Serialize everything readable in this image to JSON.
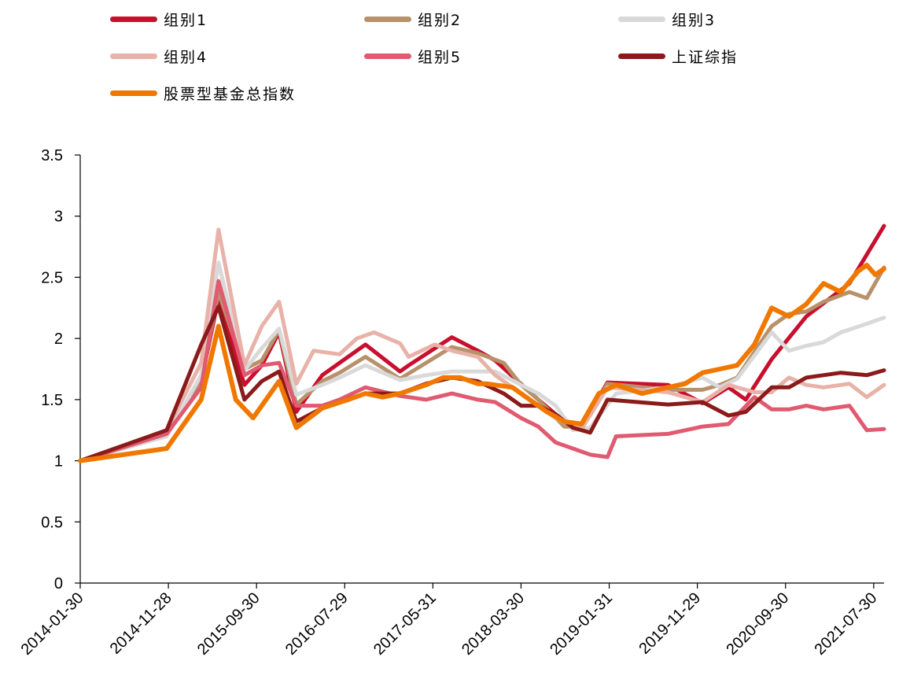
{
  "chart_data": {
    "type": "line",
    "title": "",
    "xlabel": "",
    "ylabel": "",
    "ylim": [
      0,
      3.5
    ],
    "yticks": [
      "0",
      "0.5",
      "1",
      "1.5",
      "2",
      "2.5",
      "3",
      "3.5"
    ],
    "xticks": [
      "2014-01-30",
      "2014-11-28",
      "2015-09-30",
      "2016-07-29",
      "2017-05-31",
      "2018-03-30",
      "2019-01-31",
      "2019-11-29",
      "2020-09-30",
      "2021-07-30"
    ],
    "x_index_range": [
      0,
      93
    ],
    "grid": false,
    "legend_position": "top",
    "series": [
      {
        "name": "组别1",
        "color": "#c8102e",
        "width": 5,
        "x": [
          0,
          10,
          14,
          16,
          19,
          21,
          23,
          25,
          28,
          30,
          33,
          37,
          38,
          43,
          46,
          48,
          53,
          56,
          58,
          61,
          68,
          72,
          75,
          77,
          80,
          84,
          89,
          93
        ],
        "y": [
          1.0,
          1.22,
          1.65,
          2.33,
          1.62,
          1.78,
          2.05,
          1.4,
          1.7,
          1.8,
          1.95,
          1.73,
          1.78,
          2.01,
          1.9,
          1.82,
          1.5,
          1.32,
          1.28,
          1.64,
          1.62,
          1.47,
          1.6,
          1.5,
          1.83,
          2.18,
          2.45,
          2.92
        ]
      },
      {
        "name": "组别2",
        "color": "#b8916a",
        "width": 5,
        "x": [
          0,
          10,
          14,
          16,
          19,
          21,
          23,
          25,
          28,
          30,
          33,
          37,
          40,
          43,
          46,
          49,
          51,
          53,
          56,
          58,
          61,
          68,
          72,
          74,
          76,
          80,
          82,
          84,
          86,
          89,
          91,
          93
        ],
        "y": [
          1.0,
          1.22,
          1.65,
          2.38,
          1.75,
          1.82,
          2.07,
          1.46,
          1.65,
          1.72,
          1.85,
          1.67,
          1.8,
          1.93,
          1.88,
          1.8,
          1.62,
          1.5,
          1.28,
          1.27,
          1.63,
          1.58,
          1.58,
          1.62,
          1.68,
          2.1,
          2.2,
          2.22,
          2.3,
          2.38,
          2.33,
          2.58
        ]
      },
      {
        "name": "组别3",
        "color": "#d9d9d9",
        "width": 5,
        "x": [
          0,
          10,
          14,
          16,
          19,
          21,
          23,
          25,
          28,
          30,
          33,
          37,
          40,
          43,
          46,
          48,
          51,
          53,
          55,
          57,
          59,
          62,
          68,
          72,
          74,
          76,
          80,
          82,
          84,
          86,
          88,
          91,
          93
        ],
        "y": [
          1.0,
          1.2,
          1.7,
          2.62,
          1.74,
          1.92,
          2.08,
          1.54,
          1.62,
          1.68,
          1.78,
          1.66,
          1.7,
          1.73,
          1.73,
          1.73,
          1.62,
          1.55,
          1.45,
          1.25,
          1.27,
          1.55,
          1.6,
          1.68,
          1.6,
          1.67,
          2.05,
          1.9,
          1.94,
          1.97,
          2.05,
          2.12,
          2.17
        ]
      },
      {
        "name": "组别4",
        "color": "#e8b2a8",
        "width": 5,
        "x": [
          0,
          10,
          14,
          16,
          19,
          21,
          23,
          25,
          27,
          30,
          32,
          34,
          37,
          38,
          41,
          43,
          46,
          48,
          51,
          53,
          55,
          57,
          58,
          61,
          68,
          72,
          75,
          78,
          80,
          82,
          84,
          86,
          89,
          91,
          93
        ],
        "y": [
          1.0,
          1.25,
          1.8,
          2.89,
          1.78,
          2.1,
          2.3,
          1.63,
          1.9,
          1.87,
          2.0,
          2.05,
          1.96,
          1.85,
          1.95,
          1.9,
          1.85,
          1.7,
          1.55,
          1.45,
          1.35,
          1.28,
          1.26,
          1.6,
          1.56,
          1.48,
          1.62,
          1.56,
          1.56,
          1.68,
          1.62,
          1.6,
          1.63,
          1.52,
          1.62
        ]
      },
      {
        "name": "组别5",
        "color": "#e05a70",
        "width": 5,
        "x": [
          0,
          10,
          14,
          16,
          19,
          21,
          23,
          25,
          28,
          30,
          33,
          37,
          40,
          43,
          46,
          48,
          51,
          53,
          55,
          57,
          59,
          61,
          62,
          68,
          72,
          75,
          78,
          80,
          82,
          84,
          86,
          89,
          91,
          93
        ],
        "y": [
          1.0,
          1.22,
          1.6,
          2.47,
          1.7,
          1.78,
          1.8,
          1.45,
          1.45,
          1.5,
          1.6,
          1.53,
          1.5,
          1.55,
          1.5,
          1.48,
          1.35,
          1.28,
          1.15,
          1.1,
          1.05,
          1.03,
          1.2,
          1.22,
          1.28,
          1.3,
          1.52,
          1.42,
          1.42,
          1.45,
          1.42,
          1.45,
          1.25,
          1.26
        ]
      },
      {
        "name": "上证综指",
        "color": "#8b1a1a",
        "width": 5,
        "x": [
          0,
          10,
          12,
          14,
          16,
          19,
          21,
          23,
          25,
          28,
          30,
          33,
          37,
          40,
          43,
          46,
          49,
          51,
          53,
          55,
          57,
          59,
          61,
          68,
          72,
          75,
          77,
          80,
          82,
          84,
          86,
          88,
          91,
          93
        ],
        "y": [
          1.0,
          1.25,
          1.6,
          1.95,
          2.26,
          1.5,
          1.65,
          1.73,
          1.32,
          1.43,
          1.48,
          1.55,
          1.55,
          1.63,
          1.68,
          1.65,
          1.55,
          1.45,
          1.45,
          1.38,
          1.27,
          1.23,
          1.5,
          1.46,
          1.48,
          1.37,
          1.4,
          1.6,
          1.6,
          1.68,
          1.7,
          1.72,
          1.7,
          1.74
        ]
      },
      {
        "name": "股票型基金总指数",
        "color": "#f07800",
        "width": 6,
        "x": [
          0,
          10,
          14,
          16,
          18,
          20,
          23,
          25,
          28,
          31,
          33,
          35,
          37,
          40,
          42,
          44,
          46,
          47,
          50,
          52,
          54,
          56,
          58,
          60,
          62,
          65,
          68,
          70,
          72,
          74,
          76,
          78,
          80,
          82,
          84,
          86,
          88,
          90,
          91,
          92,
          93
        ],
        "y": [
          1.0,
          1.1,
          1.5,
          2.1,
          1.5,
          1.35,
          1.65,
          1.27,
          1.43,
          1.5,
          1.55,
          1.52,
          1.55,
          1.62,
          1.68,
          1.68,
          1.63,
          1.63,
          1.6,
          1.5,
          1.4,
          1.32,
          1.3,
          1.55,
          1.62,
          1.55,
          1.6,
          1.63,
          1.72,
          1.75,
          1.78,
          1.95,
          2.25,
          2.18,
          2.28,
          2.45,
          2.38,
          2.55,
          2.6,
          2.52,
          2.57
        ]
      }
    ]
  }
}
